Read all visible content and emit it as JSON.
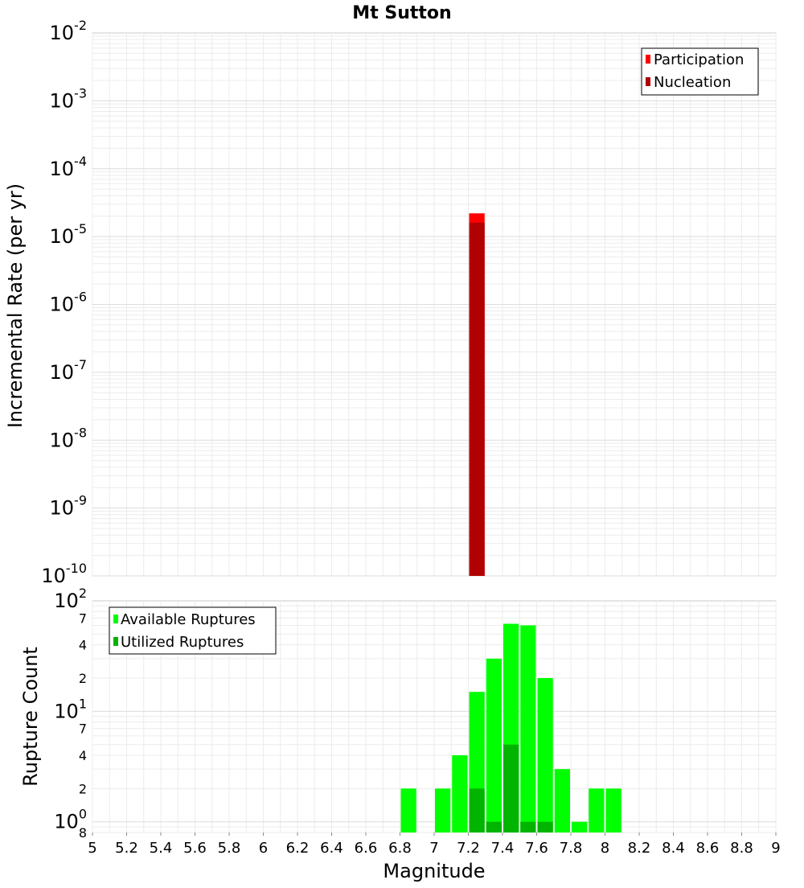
{
  "chart_data": [
    {
      "type": "bar",
      "title": "Mt Sutton",
      "ylabel": "Incremental Rate (per yr)",
      "y_scale": "log",
      "xlim": [
        5,
        9
      ],
      "ylim": [
        1e-10,
        0.01
      ],
      "y_ticks": [
        {
          "base": "10",
          "exp": "-2",
          "value": 0.01
        },
        {
          "base": "10",
          "exp": "-3",
          "value": 0.001
        },
        {
          "base": "10",
          "exp": "-4",
          "value": 0.0001
        },
        {
          "base": "10",
          "exp": "-5",
          "value": 1e-05
        },
        {
          "base": "10",
          "exp": "-6",
          "value": 1e-06
        },
        {
          "base": "10",
          "exp": "-7",
          "value": 1e-07
        },
        {
          "base": "10",
          "exp": "-8",
          "value": 1e-08
        },
        {
          "base": "10",
          "exp": "-9",
          "value": 1e-09
        },
        {
          "base": "10",
          "exp": "-10",
          "value": 1e-10
        }
      ],
      "legend_position": "top-right",
      "grid": true,
      "bin_width": 0.1,
      "series": [
        {
          "name": "Participation",
          "color": "#ff0000",
          "x": [
            7.25
          ],
          "y": [
            2.2e-05
          ]
        },
        {
          "name": "Nucleation",
          "color": "#b00000",
          "x": [
            7.25
          ],
          "y": [
            1.6e-05
          ]
        }
      ]
    },
    {
      "type": "bar",
      "xlabel": "Magnitude",
      "ylabel": "Rupture Count",
      "y_scale": "log",
      "xlim": [
        5,
        9
      ],
      "ylim": [
        0.8,
        100
      ],
      "x_ticks": [
        "5",
        "5.2",
        "5.4",
        "5.6",
        "5.8",
        "6",
        "6.2",
        "6.4",
        "6.6",
        "6.8",
        "7",
        "7.2",
        "7.4",
        "7.6",
        "7.8",
        "8",
        "8.2",
        "8.4",
        "8.6",
        "8.8",
        "9"
      ],
      "y_major_ticks": [
        {
          "base": "10",
          "exp": "2",
          "value": 100
        },
        {
          "base": "10",
          "exp": "1",
          "value": 10
        },
        {
          "base": "10",
          "exp": "0",
          "value": 1
        }
      ],
      "y_minor_ticks": [
        {
          "label": "7",
          "value": 70
        },
        {
          "label": "4",
          "value": 40
        },
        {
          "label": "2",
          "value": 20
        },
        {
          "label": "7",
          "value": 7
        },
        {
          "label": "4",
          "value": 4
        },
        {
          "label": "2",
          "value": 2
        },
        {
          "label": "8",
          "value": 0.8
        }
      ],
      "legend_position": "top-left",
      "grid": true,
      "bin_width": 0.1,
      "series": [
        {
          "name": "Available Ruptures",
          "color": "#00ff00",
          "x": [
            6.85,
            7.05,
            7.15,
            7.25,
            7.35,
            7.45,
            7.55,
            7.65,
            7.75,
            7.85,
            7.95,
            8.05
          ],
          "y": [
            2,
            2,
            4,
            15,
            30,
            62,
            60,
            20,
            3,
            1,
            2,
            2
          ]
        },
        {
          "name": "Utilized Ruptures",
          "color": "#00b400",
          "x": [
            7.25,
            7.35,
            7.45,
            7.55,
            7.65
          ],
          "y": [
            2,
            1,
            5,
            1,
            1
          ]
        }
      ]
    }
  ]
}
